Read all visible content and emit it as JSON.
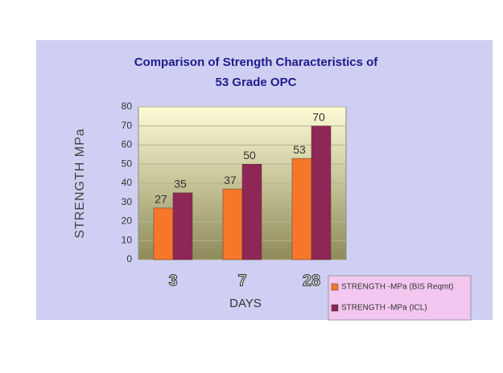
{
  "chart_data": {
    "type": "bar",
    "title": [
      "Comparison of Strength Characteristics of",
      "53 Grade OPC"
    ],
    "x_label": "DAYS",
    "y_label": "STRENGTH MPa",
    "categories": [
      "3",
      "7",
      "28"
    ],
    "series": [
      {
        "name": "STRENGTH -MPa (BIS Reqmt)",
        "color": "#f7772a",
        "values": [
          27,
          37,
          53
        ]
      },
      {
        "name": "STRENGTH -MPa (ICL)",
        "color": "#8e2656",
        "values": [
          35,
          50,
          70
        ]
      }
    ],
    "ylim": [
      0,
      80
    ],
    "yticks": [
      0,
      10,
      20,
      30,
      40,
      50,
      60,
      70,
      80
    ],
    "grid": true,
    "legend_position": "bottom-right"
  }
}
